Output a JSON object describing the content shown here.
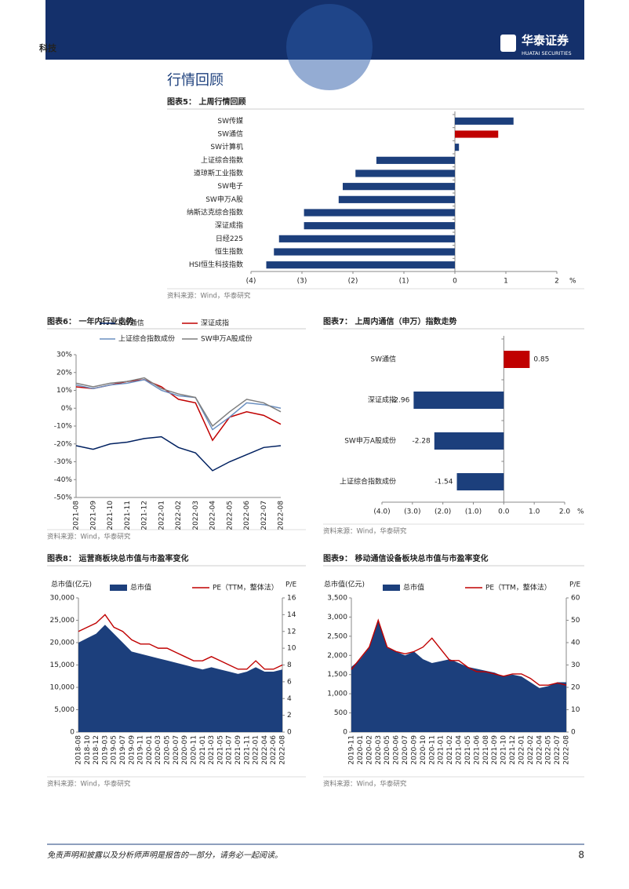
{
  "header": {
    "section": "科技",
    "logo_cn": "华泰证券",
    "logo_en": "HUATAI SECURITIES"
  },
  "heading": "行情回顾",
  "chart_data": [
    {
      "type": "hbar",
      "title": "图表5：  上周行情回顾",
      "categories": [
        "SW传媒",
        "SW通信",
        "SW计算机",
        "上证综合指数",
        "道琼斯工业指数",
        "SW电子",
        "SW申万A股",
        "纳斯达克综合指数",
        "深证成指",
        "日经225",
        "恒生指数",
        "HSI恒生科技指数"
      ],
      "values": [
        1.15,
        0.85,
        0.08,
        -1.54,
        -1.95,
        -2.2,
        -2.28,
        -2.96,
        -2.96,
        -3.45,
        -3.55,
        -3.7
      ],
      "colors": [
        "#1c3f7c",
        "#c00000",
        "#1c3f7c",
        "#1c3f7c",
        "#1c3f7c",
        "#1c3f7c",
        "#1c3f7c",
        "#1c3f7c",
        "#1c3f7c",
        "#1c3f7c",
        "#1c3f7c",
        "#1c3f7c"
      ],
      "xlim": [
        -4,
        2
      ],
      "xticks": [
        {
          "value": -4,
          "label": "(4)"
        },
        {
          "value": -3,
          "label": "(3)"
        },
        {
          "value": -2,
          "label": "(2)"
        },
        {
          "value": -1,
          "label": "(1)"
        },
        0,
        1,
        2
      ],
      "unit": "%",
      "show_values": false,
      "source": "资料来源：Wind，华泰研究"
    },
    {
      "type": "line",
      "title": "图表6：  一年内行业走势",
      "x": [
        "2021-08",
        "2021-09",
        "2021-10",
        "2021-11",
        "2021-12",
        "2022-01",
        "2022-02",
        "2022-03",
        "2022-04",
        "2022-05",
        "2022-06",
        "2022-07",
        "2022-08"
      ],
      "series": [
        {
          "name": "SW通信",
          "color": "#002060",
          "values": [
            -21,
            -23,
            -20,
            -19,
            -17,
            -16,
            -22,
            -25,
            -35,
            -30,
            -26,
            -22,
            -21
          ]
        },
        {
          "name": "深证成指",
          "color": "#c00000",
          "values": [
            12,
            11,
            13,
            15,
            16,
            12,
            5,
            3,
            -18,
            -5,
            -2,
            -4,
            -9
          ]
        },
        {
          "name": "上证综合指数成份",
          "color": "#6a8fc0",
          "values": [
            13,
            11,
            13,
            14,
            16,
            10,
            7,
            6,
            -12,
            -5,
            3,
            2,
            0
          ]
        },
        {
          "name": "SW申万A股成份",
          "color": "#7f7f7f",
          "values": [
            14,
            12,
            14,
            15,
            17,
            11,
            8,
            6,
            -10,
            -2,
            5,
            3,
            -2
          ]
        }
      ],
      "ylim": [
        -50,
        30
      ],
      "yticks": [
        {
          "value": -50,
          "label": "-50%"
        },
        {
          "value": -40,
          "label": "-40%"
        },
        {
          "value": -30,
          "label": "-30%"
        },
        {
          "value": -20,
          "label": "-20%"
        },
        {
          "value": -10,
          "label": "-10%"
        },
        {
          "value": 0,
          "label": "0%"
        },
        {
          "value": 10,
          "label": "10%"
        },
        {
          "value": 20,
          "label": "20%"
        },
        {
          "value": 30,
          "label": "30%"
        }
      ],
      "source": "资料来源：Wind，华泰研究"
    },
    {
      "type": "hbar",
      "title": "图表7：  上周内通信（申万）指数走势",
      "categories": [
        "SW通信",
        "深证成指",
        "SW申万A股成份",
        "上证综合指数成份"
      ],
      "values": [
        0.85,
        -2.96,
        -2.28,
        -1.54
      ],
      "colors": [
        "#c00000",
        "#1c3f7c",
        "#1c3f7c",
        "#1c3f7c"
      ],
      "xlim": [
        -4,
        2
      ],
      "xticks": [
        {
          "value": -4,
          "label": "(4.0)"
        },
        {
          "value": -3,
          "label": "(3.0)"
        },
        {
          "value": -2,
          "label": "(2.0)"
        },
        {
          "value": -1,
          "label": "(1.0)"
        },
        {
          "value": 0,
          "label": "0.0"
        },
        {
          "value": 1,
          "label": "1.0"
        },
        {
          "value": 2,
          "label": "2.0"
        }
      ],
      "unit": "%",
      "show_values": true,
      "source": "资料来源：Wind，华泰研究"
    },
    {
      "type": "combo",
      "title": "图表8：  运营商板块总市值与市盈率变化",
      "x": [
        "2018-08",
        "2018-10",
        "2018-12",
        "2019-03",
        "2019-05",
        "2019-07",
        "2019-09",
        "2019-11",
        "2020-01",
        "2020-03",
        "2020-05",
        "2020-07",
        "2020-09",
        "2020-11",
        "2021-01",
        "2021-03",
        "2021-05",
        "2021-07",
        "2021-09",
        "2021-11",
        "2022-01",
        "2022-04",
        "2022-06",
        "2022-08"
      ],
      "ylabel": "总市值(亿元)",
      "y2label": "P/E",
      "series": [
        {
          "name": "总市值",
          "type": "area",
          "color": "#1c3f7c",
          "values": [
            20000,
            21000,
            22000,
            24000,
            22000,
            20000,
            18000,
            17500,
            17000,
            16500,
            16000,
            15500,
            15000,
            14500,
            14000,
            14500,
            14000,
            13500,
            13000,
            13500,
            14500,
            13500,
            13500,
            14000
          ]
        },
        {
          "name": "PE（TTM，整体法）",
          "type": "line",
          "axis": "y2",
          "color": "#c00000",
          "values": [
            12,
            12.5,
            13,
            14,
            12.5,
            12,
            11,
            10.5,
            10.5,
            10,
            10,
            9.5,
            9,
            8.5,
            8.5,
            9,
            8.5,
            8,
            7.5,
            7.5,
            8.5,
            7.5,
            7.5,
            8
          ]
        }
      ],
      "ylim": [
        0,
        30000
      ],
      "yticks": [
        0,
        {
          "value": 5000,
          "label": "5,000"
        },
        {
          "value": 10000,
          "label": "10,000"
        },
        {
          "value": 15000,
          "label": "15,000"
        },
        {
          "value": 20000,
          "label": "20,000"
        },
        {
          "value": 25000,
          "label": "25,000"
        },
        {
          "value": 30000,
          "label": "30,000"
        }
      ],
      "y2lim": [
        0,
        16
      ],
      "y2ticks": [
        0,
        2,
        4,
        6,
        8,
        10,
        12,
        14,
        16
      ],
      "source": "资料来源：Wind，华泰研究"
    },
    {
      "type": "combo",
      "title": "图表9：  移动通信设备板块总市值与市盈率变化",
      "x": [
        "2019-11",
        "2020-01",
        "2020-02",
        "2020-03",
        "2020-05",
        "2020-06",
        "2020-07",
        "2020-09",
        "2020-10",
        "2020-11",
        "2021-01",
        "2021-02",
        "2021-04",
        "2021-05",
        "2021-06",
        "2021-08",
        "2021-09",
        "2021-10",
        "2021-12",
        "2022-01",
        "2022-02",
        "2022-04",
        "2022-05",
        "2022-07",
        "2022-08"
      ],
      "ylabel": "总市值(亿元)",
      "y2label": "P/E",
      "series": [
        {
          "name": "总市值",
          "type": "area",
          "color": "#1c3f7c",
          "values": [
            1700,
            1900,
            2200,
            2900,
            2200,
            2100,
            2000,
            2100,
            1900,
            1800,
            1850,
            1900,
            1800,
            1700,
            1650,
            1600,
            1550,
            1450,
            1500,
            1450,
            1300,
            1150,
            1200,
            1300,
            1300
          ]
        },
        {
          "name": "PE（TTM，整体法）",
          "type": "line",
          "axis": "y2",
          "color": "#c00000",
          "values": [
            28,
            33,
            38,
            50,
            38,
            36,
            35,
            36,
            38,
            42,
            37,
            32,
            32,
            29,
            27,
            27,
            26,
            25,
            26,
            26,
            24,
            21,
            21,
            22,
            21
          ]
        }
      ],
      "ylim": [
        0,
        3500
      ],
      "yticks": [
        0,
        500,
        {
          "value": 1000,
          "label": "1,000"
        },
        {
          "value": 1500,
          "label": "1,500"
        },
        {
          "value": 2000,
          "label": "2,000"
        },
        {
          "value": 2500,
          "label": "2,500"
        },
        {
          "value": 3000,
          "label": "3,000"
        },
        {
          "value": 3500,
          "label": "3,500"
        }
      ],
      "y2lim": [
        0,
        60
      ],
      "y2ticks": [
        0,
        10,
        20,
        30,
        40,
        50,
        60
      ],
      "source": "资料来源：Wind，华泰研究"
    }
  ],
  "footer": {
    "disclaimer": "免责声明和披露以及分析师声明是报告的一部分，请务必一起阅读。",
    "page": 8
  }
}
